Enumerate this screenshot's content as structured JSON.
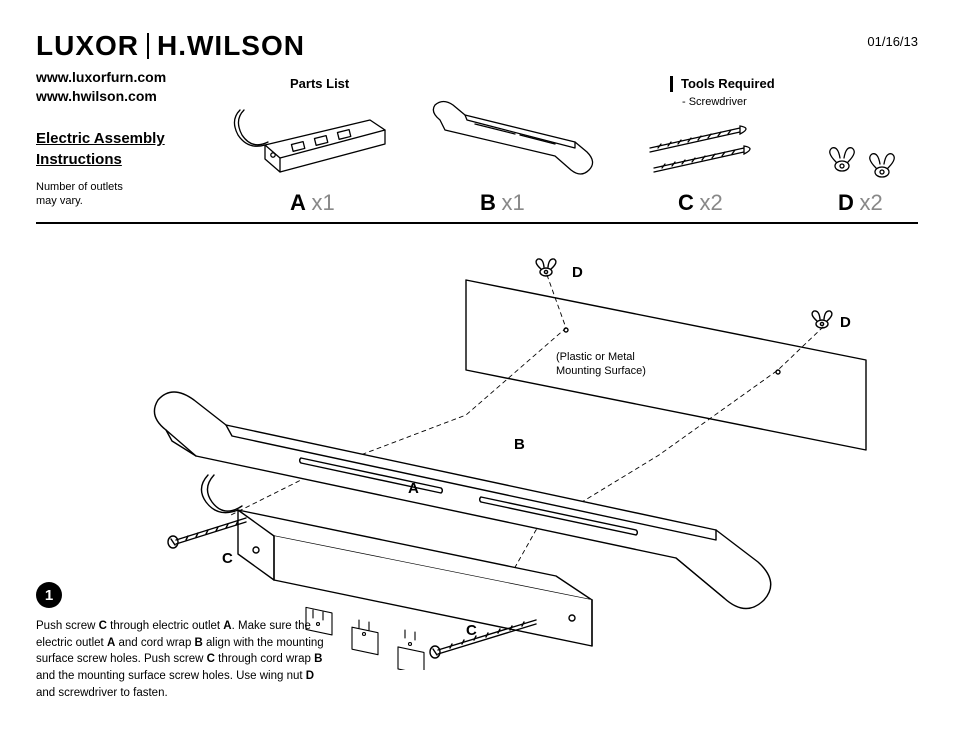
{
  "date": "01/16/13",
  "brand": {
    "left": "LUXOR",
    "right": "H.WILSON"
  },
  "urls": [
    "www.luxorfurn.com",
    "www.hwilson.com"
  ],
  "title_line1": "Electric Assembly",
  "title_line2": "Instructions",
  "note_line1": "Number of outlets",
  "note_line2": "may vary.",
  "parts_list_label": "Parts List",
  "tools": {
    "heading": "Tools Required",
    "item": "-  Screwdriver"
  },
  "parts": {
    "A": {
      "letter": "A",
      "qty": "x1"
    },
    "B": {
      "letter": "B",
      "qty": "x1"
    },
    "C": {
      "letter": "C",
      "qty": "x2"
    },
    "D": {
      "letter": "D",
      "qty": "x2"
    }
  },
  "diagram": {
    "labelA": "A",
    "labelB": "B",
    "labelC1": "C",
    "labelC2": "C",
    "labelD1": "D",
    "labelD2": "D",
    "mount_line1": "(Plastic or Metal",
    "mount_line2": "Mounting Surface)"
  },
  "step": {
    "num": "1",
    "text": "Push screw <b>C</b> through electric outlet <b>A</b>. Make sure the electric outlet <b>A</b> and cord wrap <b>B</b> align with the mounting surface screw holes. Push screw <b>C</b> through cord wrap <b>B</b> and the mounting surface screw holes. Use wing nut <b>D</b> and screwdriver to fasten."
  },
  "colors": {
    "fg": "#000000",
    "bg": "#ffffff",
    "muted": "#888888"
  }
}
